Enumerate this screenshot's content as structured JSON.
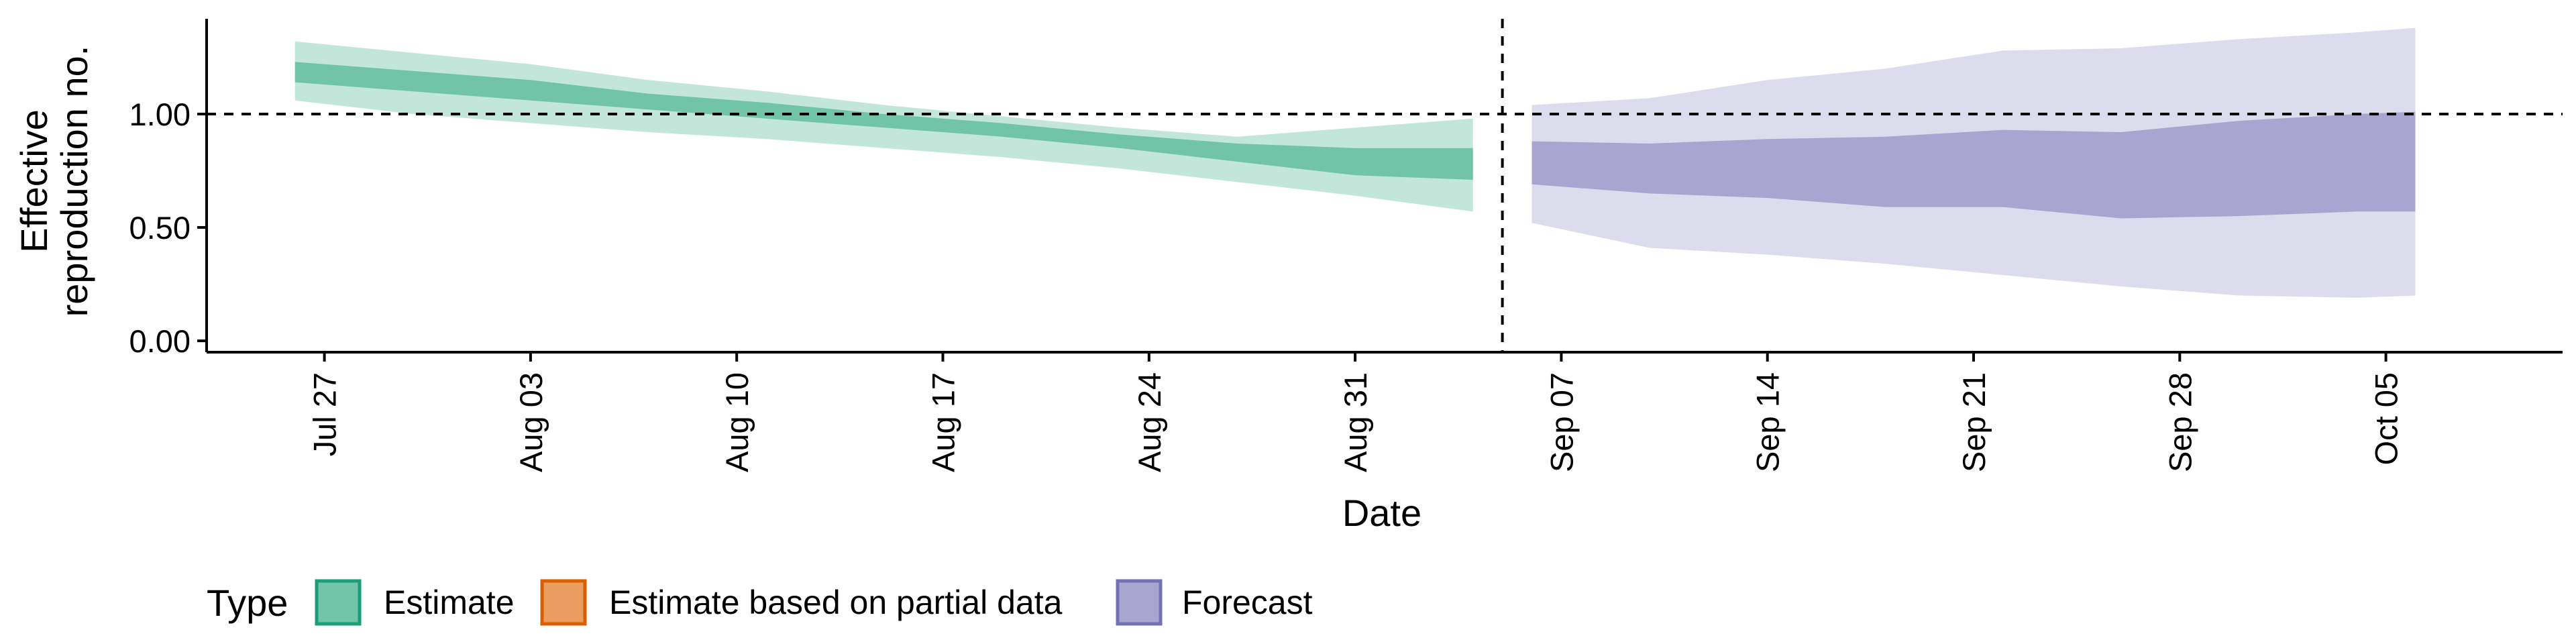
{
  "chart_data": {
    "type": "area",
    "title": "",
    "xlabel": "Date",
    "ylabel_lines": [
      "Effective",
      "reproduction no."
    ],
    "x_type": "date",
    "xlim": [
      "2020-07-23",
      "2020-10-11"
    ],
    "ylim": [
      -0.05,
      1.42
    ],
    "y_ticks": [
      0.0,
      0.5,
      1.0
    ],
    "y_tick_labels": [
      "0.00",
      "0.50",
      "1.00"
    ],
    "x_ticks": [
      "2020-07-27",
      "2020-08-03",
      "2020-08-10",
      "2020-08-17",
      "2020-08-24",
      "2020-08-31",
      "2020-09-07",
      "2020-09-14",
      "2020-09-21",
      "2020-09-28",
      "2020-10-05"
    ],
    "x_tick_labels": [
      "Jul 27",
      "Aug 03",
      "Aug 10",
      "Aug 17",
      "Aug 24",
      "Aug 31",
      "Sep 07",
      "Sep 14",
      "Sep 21",
      "Sep 28",
      "Oct 05"
    ],
    "reference_hline": 1.0,
    "reference_vline": "2020-09-05",
    "grid": false,
    "legend": {
      "title": "Type",
      "position": "bottom-left",
      "entries": [
        {
          "label": "Estimate",
          "fill": "#71c4a8",
          "stroke": "#1b9e77"
        },
        {
          "label": "Estimate based on partial data",
          "fill": "#ec9d61",
          "stroke": "#d95f02"
        },
        {
          "label": "Forecast",
          "fill": "#a9a5d1",
          "stroke": "#7570b3"
        }
      ]
    },
    "series": [
      {
        "type": "Estimate",
        "outer_fill": "#c3e6da",
        "inner_fill": "#71c4a8",
        "points": [
          {
            "x": "2020-07-26",
            "outer": [
              1.06,
              1.32
            ],
            "inner": [
              1.14,
              1.23
            ]
          },
          {
            "x": "2020-07-30",
            "outer": [
              1.0,
              1.27
            ],
            "inner": [
              1.1,
              1.19
            ]
          },
          {
            "x": "2020-08-03",
            "outer": [
              0.96,
              1.22
            ],
            "inner": [
              1.06,
              1.15
            ]
          },
          {
            "x": "2020-08-07",
            "outer": [
              0.92,
              1.15
            ],
            "inner": [
              1.02,
              1.09
            ]
          },
          {
            "x": "2020-08-11",
            "outer": [
              0.89,
              1.1
            ],
            "inner": [
              0.98,
              1.05
            ]
          },
          {
            "x": "2020-08-15",
            "outer": [
              0.85,
              1.04
            ],
            "inner": [
              0.94,
              1.0
            ]
          },
          {
            "x": "2020-08-19",
            "outer": [
              0.81,
              0.99
            ],
            "inner": [
              0.9,
              0.96
            ]
          },
          {
            "x": "2020-08-23",
            "outer": [
              0.76,
              0.94
            ],
            "inner": [
              0.85,
              0.91
            ]
          },
          {
            "x": "2020-08-27",
            "outer": [
              0.7,
              0.9
            ],
            "inner": [
              0.79,
              0.87
            ]
          },
          {
            "x": "2020-08-31",
            "outer": [
              0.64,
              0.94
            ],
            "inner": [
              0.73,
              0.85
            ]
          },
          {
            "x": "2020-09-04",
            "outer": [
              0.57,
              0.98
            ],
            "inner": [
              0.71,
              0.85
            ]
          }
        ]
      },
      {
        "type": "Forecast",
        "outer_fill": "#dddcec",
        "inner_fill": "#a9a5d1",
        "points": [
          {
            "x": "2020-09-06",
            "outer": [
              0.52,
              1.04
            ],
            "inner": [
              0.69,
              0.88
            ]
          },
          {
            "x": "2020-09-10",
            "outer": [
              0.41,
              1.07
            ],
            "inner": [
              0.65,
              0.87
            ]
          },
          {
            "x": "2020-09-14",
            "outer": [
              0.38,
              1.15
            ],
            "inner": [
              0.63,
              0.89
            ]
          },
          {
            "x": "2020-09-18",
            "outer": [
              0.34,
              1.2
            ],
            "inner": [
              0.59,
              0.9
            ]
          },
          {
            "x": "2020-09-22",
            "outer": [
              0.29,
              1.28
            ],
            "inner": [
              0.59,
              0.93
            ]
          },
          {
            "x": "2020-09-26",
            "outer": [
              0.24,
              1.29
            ],
            "inner": [
              0.54,
              0.92
            ]
          },
          {
            "x": "2020-09-30",
            "outer": [
              0.2,
              1.33
            ],
            "inner": [
              0.55,
              0.97
            ]
          },
          {
            "x": "2020-10-04",
            "outer": [
              0.19,
              1.36
            ],
            "inner": [
              0.57,
              1.0
            ]
          },
          {
            "x": "2020-10-06",
            "outer": [
              0.2,
              1.38
            ],
            "inner": [
              0.57,
              1.01
            ]
          }
        ]
      }
    ]
  }
}
